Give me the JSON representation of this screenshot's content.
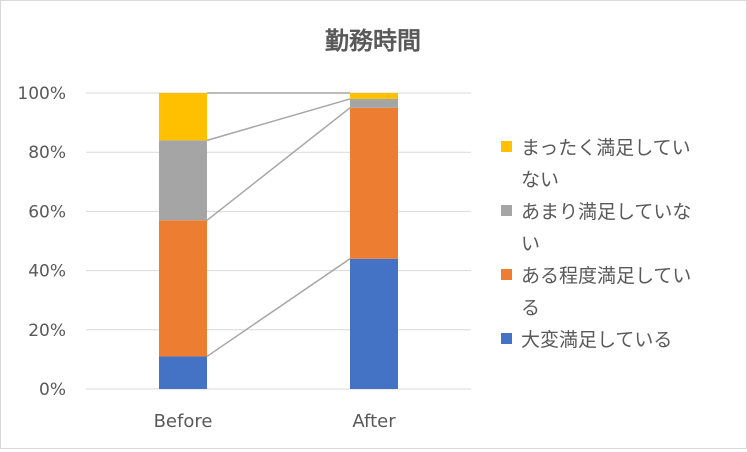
{
  "chart_data": {
    "type": "bar",
    "stacked": true,
    "stack_mode": "percent",
    "title": "勤務時間",
    "xlabel": "",
    "ylabel": "",
    "categories": [
      "Before",
      "After"
    ],
    "ylim": [
      0,
      100
    ],
    "yticks": [
      "0%",
      "20%",
      "40%",
      "60%",
      "80%",
      "100%"
    ],
    "grid": true,
    "series_lines": true,
    "legend": "right",
    "series": [
      {
        "name": "大変満足している",
        "values": [
          11,
          44
        ],
        "color": "#4472C4"
      },
      {
        "name": "ある程度満足している",
        "values": [
          46,
          51
        ],
        "color": "#ED7D31"
      },
      {
        "name": "あまり満足していない",
        "values": [
          27,
          3
        ],
        "color": "#A5A5A5"
      },
      {
        "name": "まったく満足していない",
        "values": [
          16,
          2
        ],
        "color": "#FFC000"
      }
    ],
    "legend_entries": [
      {
        "lines": [
          "まったく満足してい",
          "ない"
        ],
        "color": "#FFC000"
      },
      {
        "lines": [
          "あまり満足していな",
          "い"
        ],
        "color": "#A5A5A5"
      },
      {
        "lines": [
          "ある程度満足してい",
          "る"
        ],
        "color": "#ED7D31"
      },
      {
        "lines": [
          "大変満足している"
        ],
        "color": "#4472C4"
      }
    ]
  }
}
